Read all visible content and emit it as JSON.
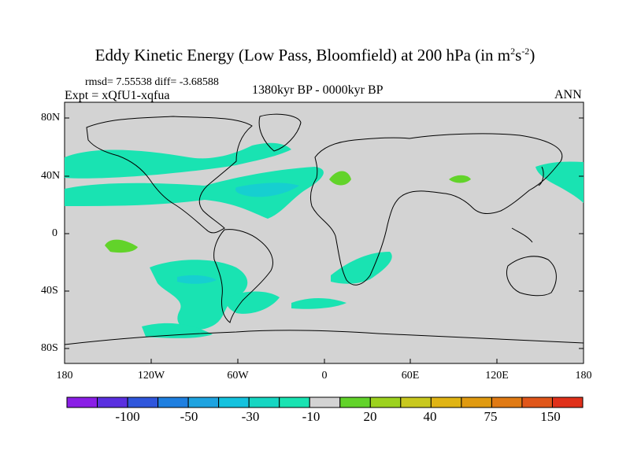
{
  "title": {
    "main": "Eddy Kinetic Energy (Low Pass, Bloomfield) at 200 hPa (in m",
    "sup1": "2",
    "mid": "s",
    "sup2": "-2",
    "end": ")"
  },
  "stats": "rmsd= 7.55538 diff= -3.68588",
  "expt": "Expt = xQfU1-xqfua",
  "period": "1380kyr BP - 0000kyr BP",
  "season": "ANN",
  "map": {
    "lat_labels": [
      "80N",
      "40N",
      "0",
      "40S",
      "80S"
    ],
    "lon_labels": [
      "180",
      "120W",
      "60W",
      "0",
      "60E",
      "120E",
      "180"
    ],
    "land_fill": "#d3d3d3"
  },
  "colorbar": {
    "colors": [
      "#8a1ee6",
      "#5a2fe0",
      "#2f56dc",
      "#1e7fe0",
      "#1ea3e0",
      "#14c2de",
      "#16d6c2",
      "#19e3b2",
      "#d3d3d3",
      "#62d32a",
      "#9cd21e",
      "#c8c81e",
      "#e0b414",
      "#e09a10",
      "#e07a14",
      "#e0561a",
      "#e0301a"
    ],
    "labels": [
      "-100",
      "-50",
      "-30",
      "-10",
      "20",
      "40",
      "75",
      "150"
    ]
  }
}
